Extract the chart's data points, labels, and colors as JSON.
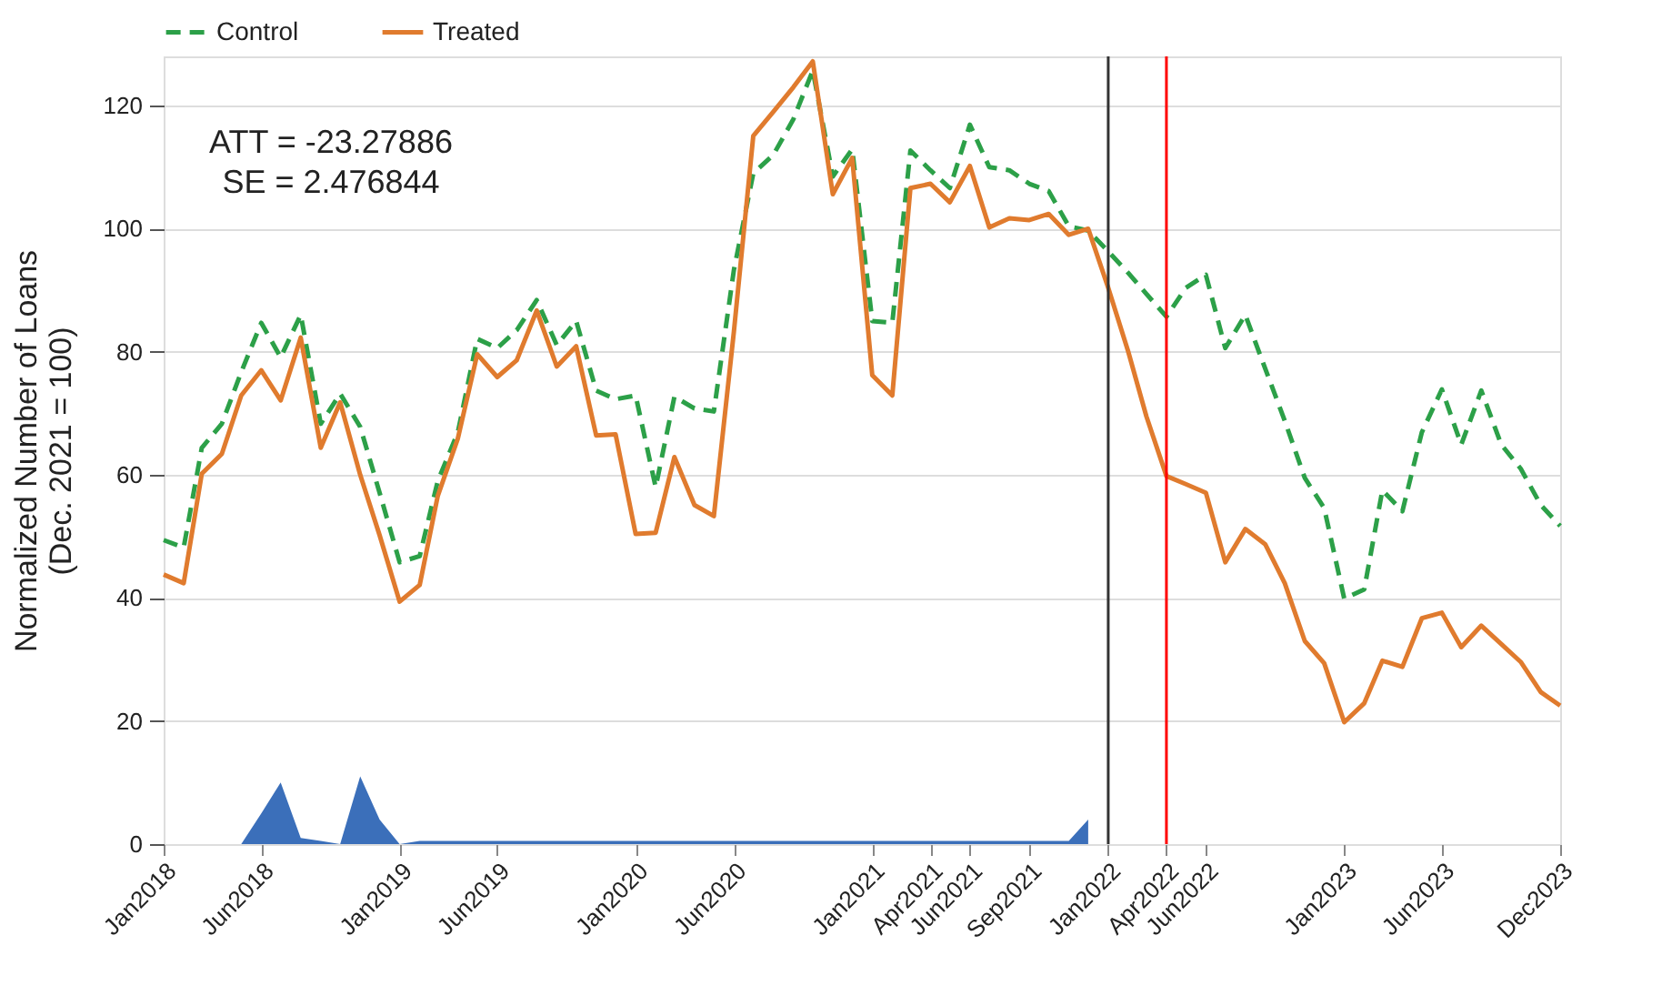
{
  "chart_data": {
    "type": "line",
    "ylabel": "Normalized Number of Loans\n(Dec. 2021 = 100)",
    "annotations": [
      "ATT = -23.27886",
      "SE = 2.476844"
    ],
    "x": [
      "2018-01",
      "2018-02",
      "2018-03",
      "2018-04",
      "2018-05",
      "2018-06",
      "2018-07",
      "2018-08",
      "2018-09",
      "2018-10",
      "2018-11",
      "2018-12",
      "2019-01",
      "2019-02",
      "2019-03",
      "2019-04",
      "2019-05",
      "2019-06",
      "2019-07",
      "2019-08",
      "2019-09",
      "2019-10",
      "2019-11",
      "2019-12",
      "2020-01",
      "2020-02",
      "2020-03",
      "2020-04",
      "2020-05",
      "2020-06",
      "2020-07",
      "2020-08",
      "2020-09",
      "2020-10",
      "2020-11",
      "2020-12",
      "2021-01",
      "2021-02",
      "2021-03",
      "2021-04",
      "2021-05",
      "2021-06",
      "2021-07",
      "2021-08",
      "2021-09",
      "2021-10",
      "2021-11",
      "2021-12",
      "2022-01",
      "2022-02",
      "2022-03",
      "2022-04",
      "2022-05",
      "2022-06",
      "2022-07",
      "2022-08",
      "2022-09",
      "2022-10",
      "2022-11",
      "2022-12",
      "2023-01",
      "2023-02",
      "2023-03",
      "2023-04",
      "2023-05",
      "2023-06",
      "2023-07",
      "2023-08",
      "2023-09",
      "2023-10",
      "2023-11",
      "2023-12"
    ],
    "series": [
      {
        "name": "Control",
        "color": "#2ca048",
        "line_style": "dashed",
        "values": [
          49.4,
          48.2,
          64.4,
          68.3,
          76.7,
          84.7,
          79.1,
          86.0,
          68.3,
          73.2,
          67.8,
          57.1,
          45.8,
          46.8,
          59.0,
          66.9,
          82.1,
          80.6,
          83.5,
          88.4,
          81.1,
          85.0,
          73.7,
          72.3,
          72.9,
          58.0,
          72.7,
          70.8,
          70.3,
          93.3,
          109.0,
          112.0,
          117.8,
          125.7,
          108.5,
          112.9,
          85.0,
          84.7,
          112.7,
          109.5,
          106.6,
          116.9,
          110.0,
          109.5,
          107.3,
          106.1,
          100.4,
          99.7,
          96.3,
          92.8,
          89.4,
          85.7,
          90.4,
          92.5,
          80.6,
          86.0,
          77.2,
          68.8,
          59.5,
          54.6,
          39.9,
          41.4,
          57.5,
          54.1,
          66.9,
          73.9,
          64.9,
          73.7,
          64.9,
          61.0,
          55.1,
          51.7
        ]
      },
      {
        "name": "Treated",
        "color": "#e07b2e",
        "line_style": "solid",
        "values": [
          43.8,
          42.4,
          60.2,
          63.4,
          72.9,
          77.0,
          72.1,
          82.3,
          64.4,
          71.8,
          60.0,
          50.2,
          39.4,
          42.1,
          56.6,
          65.9,
          79.6,
          75.9,
          78.6,
          86.7,
          77.6,
          80.9,
          66.4,
          66.6,
          50.4,
          50.6,
          62.9,
          55.1,
          53.3,
          83.3,
          115.1,
          119.0,
          123.0,
          127.2,
          105.6,
          111.5,
          76.2,
          72.9,
          106.6,
          107.3,
          104.3,
          110.2,
          100.2,
          101.7,
          101.4,
          102.4,
          99.0,
          100.0,
          90.4,
          80.0,
          69.5,
          59.8,
          58.5,
          57.1,
          45.8,
          51.2,
          48.7,
          42.4,
          33.0,
          29.4,
          19.8,
          22.9,
          29.8,
          28.8,
          36.7,
          37.6,
          32.0,
          35.5,
          32.5,
          29.6,
          24.7,
          22.5
        ]
      },
      {
        "type": "area",
        "color": "#3b6fba",
        "x": [
          "2018-05",
          "2018-06",
          "2018-07",
          "2018-08",
          "2018-09",
          "2018-10",
          "2018-11",
          "2018-12",
          "2019-01",
          "2019-02",
          "2021-11",
          "2021-12"
        ],
        "values": [
          0,
          5,
          10,
          1,
          0.5,
          0,
          11,
          4,
          0,
          0.5,
          0.5,
          4
        ]
      }
    ],
    "xlim": [
      "2018-01",
      "2023-12"
    ],
    "xticks": [
      {
        "value": "2018-01",
        "label": "Jan2018"
      },
      {
        "value": "2018-06",
        "label": "Jun2018"
      },
      {
        "value": "2019-01",
        "label": "Jan2019"
      },
      {
        "value": "2019-06",
        "label": "Jun2019"
      },
      {
        "value": "2020-01",
        "label": "Jan2020"
      },
      {
        "value": "2020-06",
        "label": "Jun2020"
      },
      {
        "value": "2021-01",
        "label": "Jan2021"
      },
      {
        "value": "2021-04",
        "label": "Apr2021"
      },
      {
        "value": "2021-06",
        "label": "Jun2021"
      },
      {
        "value": "2021-09",
        "label": "Sep2021"
      },
      {
        "value": "2022-01",
        "label": "Jan2022"
      },
      {
        "value": "2022-04",
        "label": "Apr2022"
      },
      {
        "value": "2022-06",
        "label": "Jun2022"
      },
      {
        "value": "2023-01",
        "label": "Jan2023"
      },
      {
        "value": "2023-06",
        "label": "Jun2023"
      },
      {
        "value": "2023-12",
        "label": "Dec2023"
      }
    ],
    "ylim": [
      0,
      128
    ],
    "yticks": [
      0,
      20,
      40,
      60,
      80,
      100,
      120
    ],
    "ref_lines": [
      {
        "axis": "x",
        "value": "2022-01",
        "color": "#333333"
      },
      {
        "axis": "x",
        "value": "2022-04",
        "color": "#ff0000"
      }
    ],
    "grid": "y",
    "legend": "top",
    "marker": "none"
  }
}
